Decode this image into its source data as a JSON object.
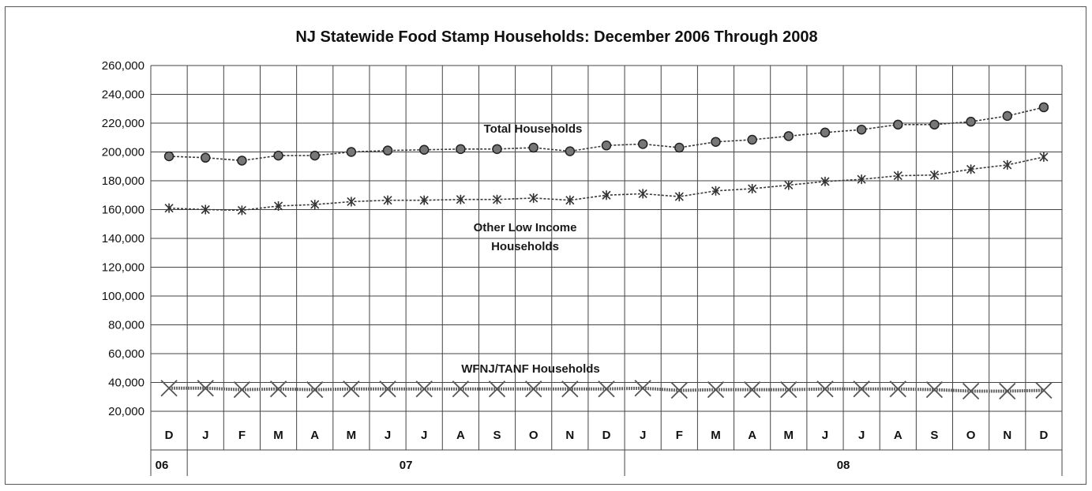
{
  "chart_data": {
    "type": "line",
    "title": "NJ Statewide Food Stamp Households: December 2006 Through 2008",
    "xlabel": "",
    "ylabel": "",
    "ylim": [
      20000,
      260000
    ],
    "yticks": [
      "260,000",
      "240,000",
      "220,000",
      "200,000",
      "180,000",
      "160,000",
      "140,000",
      "120,000",
      "100,000",
      "80,000",
      "60,000",
      "40,000",
      "20,000"
    ],
    "categories": [
      "D",
      "J",
      "F",
      "M",
      "A",
      "M",
      "J",
      "J",
      "A",
      "S",
      "O",
      "N",
      "D",
      "J",
      "F",
      "M",
      "A",
      "M",
      "J",
      "J",
      "A",
      "S",
      "O",
      "N",
      "D"
    ],
    "year_groups": [
      {
        "label": "06",
        "start": 0,
        "end": 0
      },
      {
        "label": "07",
        "start": 1,
        "end": 12
      },
      {
        "label": "08",
        "start": 13,
        "end": 24
      }
    ],
    "grid": true,
    "legend": "none",
    "series": [
      {
        "name": "Total Households",
        "marker": "circle",
        "values": [
          197000,
          196000,
          194000,
          197500,
          197500,
          200000,
          201000,
          201500,
          202000,
          202000,
          203000,
          200500,
          204500,
          205500,
          203000,
          207000,
          208500,
          211000,
          213500,
          215500,
          219000,
          219000,
          221000,
          225000,
          231000
        ]
      },
      {
        "name": "Other Low Income Households",
        "marker": "asterisk",
        "values": [
          161000,
          160000,
          159500,
          162500,
          163500,
          165500,
          166500,
          166500,
          167000,
          167000,
          168000,
          166500,
          170000,
          171000,
          169000,
          173000,
          174500,
          177000,
          179500,
          181000,
          183500,
          184000,
          188000,
          191000,
          196500
        ]
      },
      {
        "name": "WFNJ/TANF Households",
        "marker": "x",
        "values": [
          36000,
          36000,
          35000,
          35500,
          35000,
          35500,
          35500,
          35500,
          35500,
          35500,
          35500,
          35500,
          35500,
          36000,
          34500,
          35000,
          35000,
          35000,
          35500,
          35500,
          35500,
          35000,
          34000,
          34000,
          34500
        ]
      }
    ],
    "annotations": [
      {
        "text": "Total Households",
        "series": 0
      },
      {
        "text": "Other Low Income",
        "series": 1
      },
      {
        "text": "Households",
        "series": 1
      },
      {
        "text": "WFNJ/TANF Households",
        "series": 2
      }
    ]
  }
}
